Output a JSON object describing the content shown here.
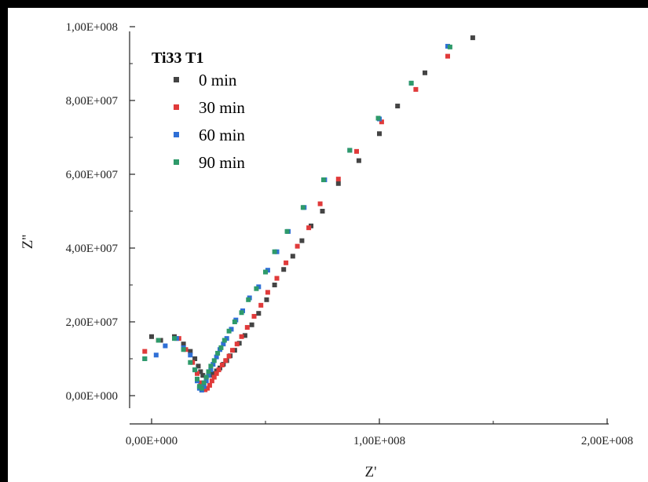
{
  "chart_data": {
    "type": "scatter",
    "title": "",
    "xlabel": "Z'",
    "ylabel": "Z''",
    "xlim": [
      -5000000,
      200000000
    ],
    "ylim": [
      -4000000,
      103000000
    ],
    "x_ticks": [
      0,
      100000000,
      200000000
    ],
    "x_tick_labels": [
      "0,00E+000",
      "1,00E+008",
      "2,00E+008"
    ],
    "y_ticks": [
      0,
      20000000,
      40000000,
      60000000,
      80000000,
      100000000
    ],
    "y_tick_labels": [
      "0,00E+000",
      "2,00E+007",
      "4,00E+007",
      "6,00E+007",
      "8,00E+007",
      "1,00E+008"
    ],
    "grid": false,
    "legend": {
      "title": "Ti33 T1",
      "placement": "top-left"
    },
    "series": [
      {
        "name": "0 min",
        "color": "#444444",
        "points": [
          [
            0,
            16000000
          ],
          [
            4000000,
            15000000
          ],
          [
            10000000,
            16000000
          ],
          [
            14000000,
            14000000
          ],
          [
            17000000,
            12000000
          ],
          [
            19000000,
            10000000
          ],
          [
            20500000,
            8000000
          ],
          [
            21500000,
            6500000
          ],
          [
            22500000,
            5500000
          ],
          [
            24000000,
            5000000
          ],
          [
            25500000,
            5500000
          ],
          [
            27000000,
            6000000
          ],
          [
            28500000,
            6700000
          ],
          [
            30000000,
            7500000
          ],
          [
            31500000,
            8500000
          ],
          [
            33000000,
            9500000
          ],
          [
            34500000,
            10800000
          ],
          [
            36500000,
            12300000
          ],
          [
            38500000,
            14200000
          ],
          [
            41000000,
            16300000
          ],
          [
            44000000,
            19200000
          ],
          [
            47000000,
            22300000
          ],
          [
            50500000,
            26000000
          ],
          [
            54000000,
            30000000
          ],
          [
            58000000,
            34200000
          ],
          [
            62000000,
            37800000
          ],
          [
            66000000,
            42000000
          ],
          [
            70000000,
            46000000
          ],
          [
            75000000,
            50000000
          ],
          [
            82000000,
            57500000
          ],
          [
            91000000,
            63700000
          ],
          [
            100000000,
            71000000
          ],
          [
            108000000,
            78500000
          ],
          [
            120000000,
            87500000
          ],
          [
            141000000,
            97000000
          ]
        ]
      },
      {
        "name": "30 min",
        "color": "#e03a3a",
        "points": [
          [
            -3000000,
            12000000
          ],
          [
            3000000,
            15000000
          ],
          [
            12000000,
            15500000
          ],
          [
            15000000,
            12500000
          ],
          [
            18000000,
            9000000
          ],
          [
            20000000,
            6000000
          ],
          [
            21500000,
            3500000
          ],
          [
            22500000,
            2000000
          ],
          [
            23500000,
            1600000
          ],
          [
            24500000,
            2000000
          ],
          [
            25500000,
            2800000
          ],
          [
            26500000,
            4000000
          ],
          [
            27500000,
            5000000
          ],
          [
            28500000,
            6000000
          ],
          [
            29500000,
            7000000
          ],
          [
            31000000,
            8300000
          ],
          [
            32500000,
            9500000
          ],
          [
            34000000,
            10700000
          ],
          [
            35500000,
            12300000
          ],
          [
            37500000,
            14000000
          ],
          [
            39500000,
            16000000
          ],
          [
            42000000,
            18500000
          ],
          [
            45000000,
            21500000
          ],
          [
            48000000,
            24500000
          ],
          [
            51000000,
            28000000
          ],
          [
            55000000,
            31800000
          ],
          [
            59000000,
            36000000
          ],
          [
            64000000,
            40500000
          ],
          [
            69000000,
            45500000
          ],
          [
            74000000,
            52000000
          ],
          [
            82000000,
            58700000
          ],
          [
            90000000,
            66200000
          ],
          [
            101000000,
            74200000
          ],
          [
            116000000,
            83000000
          ],
          [
            130000000,
            92000000
          ]
        ]
      },
      {
        "name": "60 min",
        "color": "#2f6fd6",
        "points": [
          [
            -3000000,
            10000000
          ],
          [
            2000000,
            11000000
          ],
          [
            6000000,
            13500000
          ],
          [
            11000000,
            15500000
          ],
          [
            14000000,
            13000000
          ],
          [
            17000000,
            11000000
          ],
          [
            19000000,
            7000000
          ],
          [
            20000000,
            4000000
          ],
          [
            21000000,
            2000000
          ],
          [
            22000000,
            1500000
          ],
          [
            23000000,
            2500000
          ],
          [
            24000000,
            4000000
          ],
          [
            25000000,
            5500000
          ],
          [
            26000000,
            7000000
          ],
          [
            27000000,
            8500000
          ],
          [
            28500000,
            10500000
          ],
          [
            30000000,
            12500000
          ],
          [
            31500000,
            14000000
          ],
          [
            33000000,
            15500000
          ],
          [
            35000000,
            18000000
          ],
          [
            37000000,
            20500000
          ],
          [
            40000000,
            23000000
          ],
          [
            43000000,
            26500000
          ],
          [
            47000000,
            29500000
          ],
          [
            51000000,
            34000000
          ],
          [
            55000000,
            39000000
          ],
          [
            60000000,
            44500000
          ],
          [
            67000000,
            51000000
          ],
          [
            76000000,
            58500000
          ],
          [
            87000000,
            66500000
          ],
          [
            100000000,
            75000000
          ],
          [
            114000000,
            84700000
          ],
          [
            130000000,
            94700000
          ]
        ]
      },
      {
        "name": "90 min",
        "color": "#2e9a6a",
        "points": [
          [
            -3000000,
            10000000
          ],
          [
            3000000,
            15000000
          ],
          [
            10000000,
            15500000
          ],
          [
            14000000,
            12500000
          ],
          [
            17000000,
            9000000
          ],
          [
            19000000,
            7000000
          ],
          [
            20000000,
            4500000
          ],
          [
            21000000,
            2500000
          ],
          [
            22000000,
            2000000
          ],
          [
            23000000,
            3500000
          ],
          [
            24000000,
            5000000
          ],
          [
            25000000,
            6500000
          ],
          [
            26000000,
            8000000
          ],
          [
            27500000,
            9500000
          ],
          [
            29000000,
            11500000
          ],
          [
            30500000,
            13000000
          ],
          [
            32000000,
            15000000
          ],
          [
            34000000,
            17500000
          ],
          [
            36500000,
            20000000
          ],
          [
            39500000,
            22500000
          ],
          [
            42500000,
            26000000
          ],
          [
            46000000,
            29000000
          ],
          [
            50000000,
            33500000
          ],
          [
            54000000,
            39000000
          ],
          [
            59500000,
            44500000
          ],
          [
            66500000,
            51000000
          ],
          [
            75500000,
            58500000
          ],
          [
            87000000,
            66500000
          ],
          [
            99500000,
            75200000
          ],
          [
            114000000,
            84700000
          ],
          [
            131000000,
            94500000
          ]
        ]
      }
    ]
  }
}
